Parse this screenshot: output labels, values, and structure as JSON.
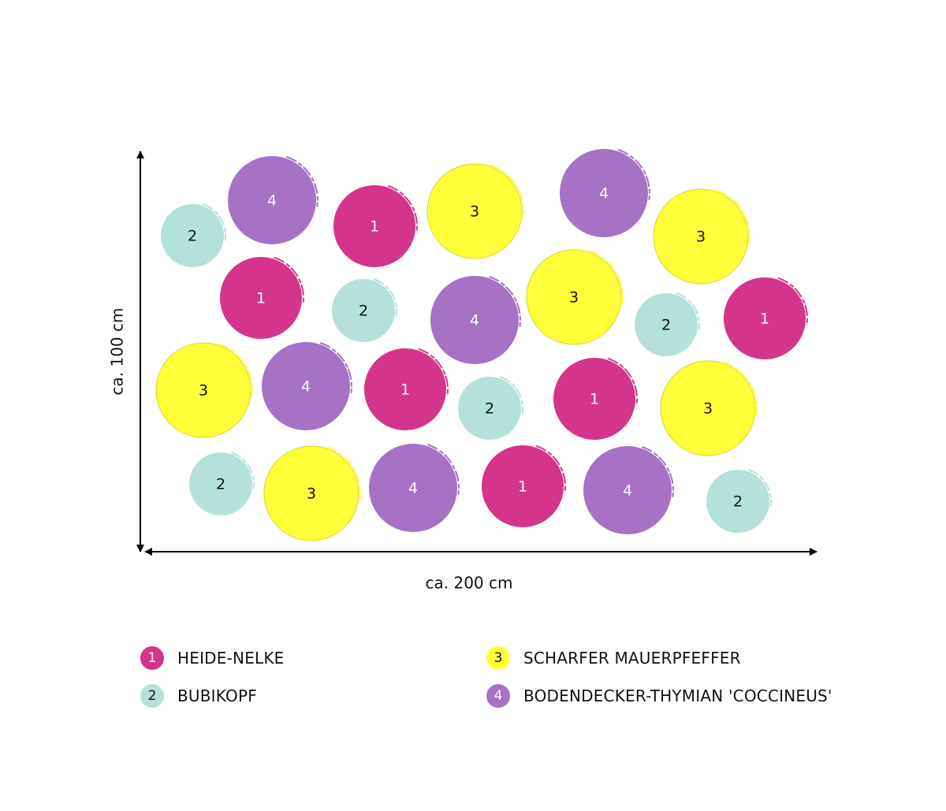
{
  "dimensions": {
    "height_label": "ca. 100 cm",
    "width_label": "ca. 200 cm"
  },
  "species": [
    {
      "number": "1",
      "name": "HEIDE-NELKE",
      "color": "#d4348a",
      "text_color": "#ffffff"
    },
    {
      "number": "2",
      "name": "BUBIKOPF",
      "color": "#b4e1da",
      "text_color": "#111111"
    },
    {
      "number": "3",
      "name": "SCHARFER MAUERPFEFFER",
      "color": "#ffff3a",
      "text_color": "#111111"
    },
    {
      "number": "4",
      "name": "BODENDECKER-THYMIAN 'COCCINEUS'",
      "color": "#a572c6",
      "text_color": "#ffffff"
    }
  ],
  "planting_plan": [
    {
      "species": "2",
      "label": "2"
    },
    {
      "species": "4",
      "label": "4"
    },
    {
      "species": "1",
      "label": "1"
    },
    {
      "species": "3",
      "label": "3"
    },
    {
      "species": "4",
      "label": "4"
    },
    {
      "species": "3",
      "label": "3"
    },
    {
      "species": "1",
      "label": "1"
    },
    {
      "species": "2",
      "label": "2"
    },
    {
      "species": "4",
      "label": "4"
    },
    {
      "species": "3",
      "label": "3"
    },
    {
      "species": "2",
      "label": "2"
    },
    {
      "species": "1",
      "label": "1"
    },
    {
      "species": "3",
      "label": "3"
    },
    {
      "species": "4",
      "label": "4"
    },
    {
      "species": "1",
      "label": "1"
    },
    {
      "species": "2",
      "label": "2"
    },
    {
      "species": "1",
      "label": "1"
    },
    {
      "species": "3",
      "label": "3"
    },
    {
      "species": "2",
      "label": "2"
    },
    {
      "species": "3",
      "label": "3"
    },
    {
      "species": "4",
      "label": "4"
    },
    {
      "species": "1",
      "label": "1"
    },
    {
      "species": "4",
      "label": "4"
    },
    {
      "species": "2",
      "label": "2"
    }
  ],
  "legend": [
    {
      "number": "1",
      "label": "HEIDE-NELKE"
    },
    {
      "number": "2",
      "label": "BUBIKOPF"
    },
    {
      "number": "3",
      "label": "SCHARFER MAUERPFEFFER"
    },
    {
      "number": "4",
      "label": "BODENDECKER-THYMIAN 'COCCINEUS'"
    }
  ]
}
